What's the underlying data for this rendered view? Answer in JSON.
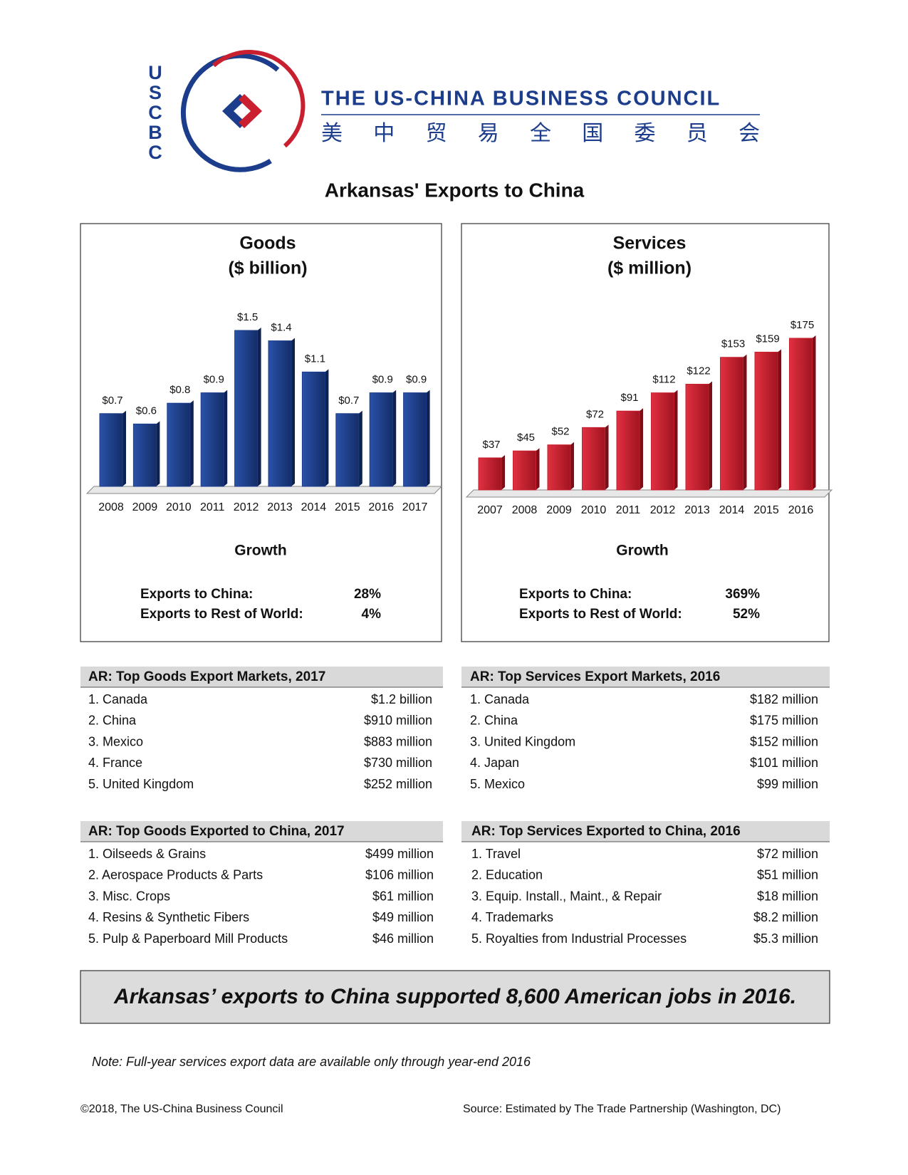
{
  "header": {
    "logo_letters": [
      "U",
      "S",
      "C",
      "B",
      "C"
    ],
    "org_name": "THE US-CHINA BUSINESS COUNCIL",
    "org_name_chinese": "美 中 贸 易 全 国 委 员 会"
  },
  "title": "Arkansas' Exports to China",
  "chart_data": [
    {
      "type": "bar",
      "title": "Goods",
      "subtitle": "($ billion)",
      "categories": [
        "2008",
        "2009",
        "2010",
        "2011",
        "2012",
        "2013",
        "2014",
        "2015",
        "2016",
        "2017"
      ],
      "values": [
        0.7,
        0.6,
        0.8,
        0.9,
        1.5,
        1.4,
        1.1,
        0.7,
        0.9,
        0.9
      ],
      "value_labels": [
        "$0.7",
        "$0.6",
        "$0.8",
        "$0.9",
        "$1.5",
        "$1.4",
        "$1.1",
        "$0.7",
        "$0.9",
        "$0.9"
      ],
      "color": "#1c3d8c"
    },
    {
      "type": "bar",
      "title": "Services",
      "subtitle": "($ million)",
      "categories": [
        "2007",
        "2008",
        "2009",
        "2010",
        "2011",
        "2012",
        "2013",
        "2014",
        "2015",
        "2016"
      ],
      "values": [
        37,
        45,
        52,
        72,
        91,
        112,
        122,
        153,
        159,
        175
      ],
      "value_labels": [
        "$37",
        "$45",
        "$52",
        "$72",
        "$91",
        "$112",
        "$122",
        "$153",
        "$159",
        "$175"
      ],
      "color": "#c91f2e"
    }
  ],
  "growth": [
    {
      "title": "Growth",
      "rows": [
        [
          "Exports to China:",
          "28%"
        ],
        [
          "Exports to Rest of World:",
          "4%"
        ]
      ]
    },
    {
      "title": "Growth",
      "rows": [
        [
          "Exports to China:",
          "369%"
        ],
        [
          "Exports to Rest of World:",
          "52%"
        ]
      ]
    }
  ],
  "tables": [
    {
      "title": "AR: Top Goods Export Markets, 2017",
      "rows": [
        [
          "1. Canada",
          "$1.2 billion"
        ],
        [
          "2. China",
          "$910 million"
        ],
        [
          "3. Mexico",
          "$883 million"
        ],
        [
          "4. France",
          "$730 million"
        ],
        [
          "5. United Kingdom",
          "$252 million"
        ]
      ]
    },
    {
      "title": "AR: Top Services Export Markets, 2016",
      "rows": [
        [
          "1. Canada",
          "$182 million"
        ],
        [
          "2. China",
          "$175 million"
        ],
        [
          "3. United Kingdom",
          "$152 million"
        ],
        [
          "4. Japan",
          "$101 million"
        ],
        [
          "5. Mexico",
          "$99 million"
        ]
      ]
    },
    {
      "title": "AR: Top Goods Exported to China, 2017",
      "rows": [
        [
          "1. Oilseeds & Grains",
          "$499 million"
        ],
        [
          "2. Aerospace Products & Parts",
          "$106 million"
        ],
        [
          "3. Misc. Crops",
          "$61 million"
        ],
        [
          "4. Resins & Synthetic Fibers",
          "$49 million"
        ],
        [
          "5. Pulp & Paperboard Mill Products",
          "$46 million"
        ]
      ]
    },
    {
      "title": "AR: Top Services Exported to China, 2016",
      "rows": [
        [
          "1. Travel",
          "$72 million"
        ],
        [
          "2. Education",
          "$51 million"
        ],
        [
          "3. Equip. Install., Maint., & Repair",
          "$18 million"
        ],
        [
          "4. Trademarks",
          "$8.2 million"
        ],
        [
          "5. Royalties from Industrial Processes",
          "$5.3 million"
        ]
      ]
    }
  ],
  "callout": "Arkansas’ exports to China supported 8,600 American jobs in 2016.",
  "note": "Note: Full-year services export data are available only through year-end 2016",
  "footer": {
    "copyright": "©2018, The US-China Business Council",
    "source": "Source: Estimated by The Trade Partnership (Washington, DC)"
  }
}
